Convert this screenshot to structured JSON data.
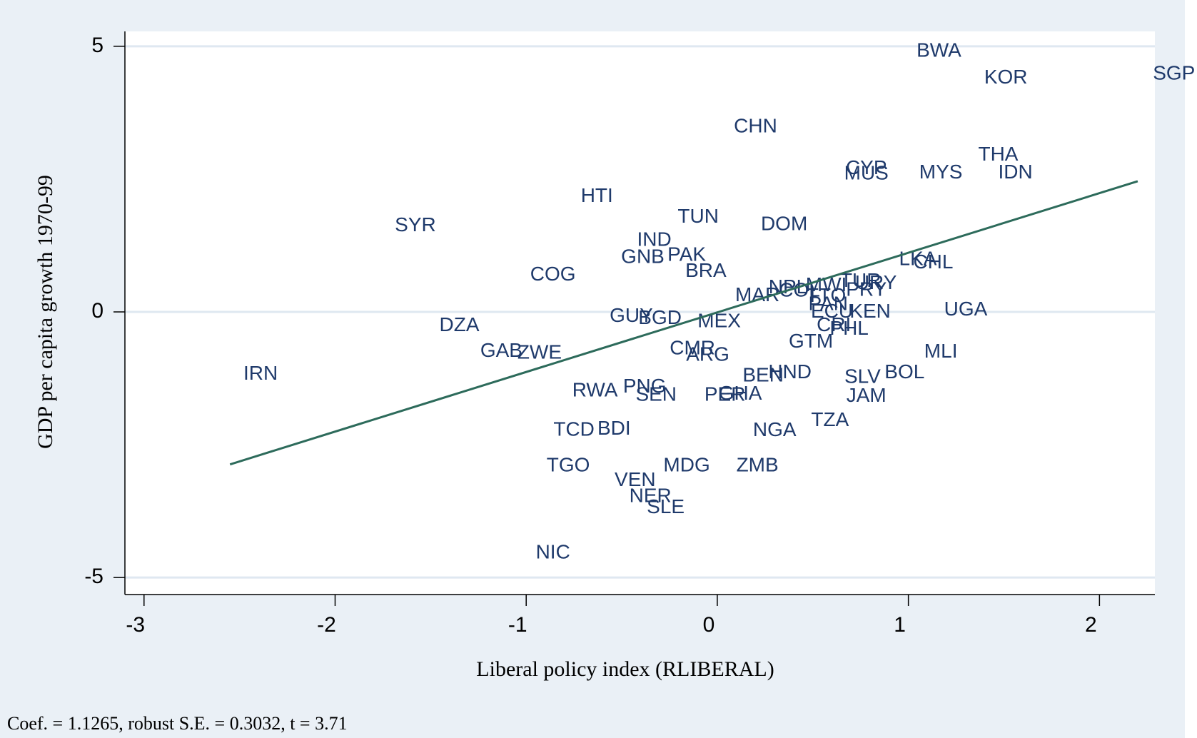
{
  "chart_data": {
    "type": "scatter",
    "x_label": "Liberal policy index (RLIBERAL)",
    "y_label": "GDP per capita growth 1970-99",
    "note": "Coef. = 1.1265, robust S.E. = 0.3032, t = 3.71",
    "labels": [
      "BWA",
      "KOR",
      "SGP",
      "CHN",
      "CYP",
      "MUS",
      "MYS",
      "THA",
      "IDN",
      "HTI",
      "SYR",
      "TUN",
      "DOM",
      "IND",
      "GNB",
      "PAK",
      "BRA",
      "COG",
      "LKA",
      "CHL",
      "MAR",
      "NPL",
      "COL",
      "MWI",
      "TTO",
      "TUR",
      "URY",
      "PRY",
      "PAN",
      "ECU",
      "KEN",
      "CRI",
      "PHL",
      "UGA",
      "DZA",
      "GUY",
      "BGD",
      "MEX",
      "GTM",
      "MLI",
      "GAB",
      "ZWE",
      "CMR",
      "ARG",
      "IRN",
      "BEN",
      "HND",
      "SLV",
      "BOL",
      "RWA",
      "PNG",
      "SEN",
      "PER",
      "GHA",
      "JAM",
      "TZA",
      "TCD",
      "BDI",
      "NGA",
      "TGO",
      "MDG",
      "ZMB",
      "VEN",
      "NER",
      "SLE",
      "NIC"
    ],
    "x": [
      1.16,
      1.51,
      2.39,
      0.2,
      0.78,
      0.78,
      1.17,
      1.47,
      1.56,
      -0.63,
      -1.58,
      -0.1,
      0.35,
      -0.33,
      -0.39,
      -0.16,
      -0.06,
      -0.86,
      1.05,
      1.13,
      0.21,
      0.37,
      0.43,
      0.57,
      0.57,
      0.75,
      0.83,
      0.78,
      0.58,
      0.6,
      0.8,
      0.61,
      0.69,
      1.3,
      -1.35,
      -0.45,
      -0.3,
      0.01,
      0.49,
      1.17,
      -1.13,
      -0.93,
      -0.13,
      -0.05,
      -2.39,
      0.24,
      0.38,
      0.76,
      0.98,
      -0.64,
      -0.38,
      -0.32,
      0.04,
      0.12,
      0.78,
      0.59,
      -0.75,
      -0.54,
      0.3,
      -0.78,
      -0.16,
      0.21,
      -0.43,
      -0.35,
      -0.27,
      -0.86
    ],
    "y": [
      4.9,
      4.4,
      4.47,
      3.48,
      2.69,
      2.59,
      2.61,
      2.95,
      2.61,
      2.17,
      1.62,
      1.78,
      1.64,
      1.34,
      1.02,
      1.06,
      0.76,
      0.69,
      0.98,
      0.92,
      0.3,
      0.45,
      0.39,
      0.49,
      0.29,
      0.57,
      0.53,
      0.4,
      0.13,
      -0.01,
      -0.01,
      -0.26,
      -0.33,
      0.03,
      -0.26,
      -0.09,
      -0.13,
      -0.19,
      -0.57,
      -0.76,
      -0.75,
      -0.78,
      -0.7,
      -0.82,
      -1.18,
      -1.21,
      -1.15,
      -1.24,
      -1.15,
      -1.49,
      -1.42,
      -1.57,
      -1.57,
      -1.55,
      -1.59,
      -2.05,
      -2.23,
      -2.21,
      -2.24,
      -2.9,
      -2.9,
      -2.9,
      -3.18,
      -3.48,
      -3.69,
      -4.54
    ],
    "label_color": "#1f3a6b",
    "fit_line": {
      "x": [
        -2.55,
        2.2
      ],
      "y": [
        -2.87,
        2.46
      ],
      "color": "#2d6b5b"
    },
    "xlim": [
      -3.1,
      2.29
    ],
    "ylim": [
      -5.32,
      5.28
    ],
    "xticks": [
      -3,
      -2,
      -1,
      0,
      1,
      2
    ],
    "yticks": [
      -5,
      0,
      5
    ],
    "grid": true
  }
}
